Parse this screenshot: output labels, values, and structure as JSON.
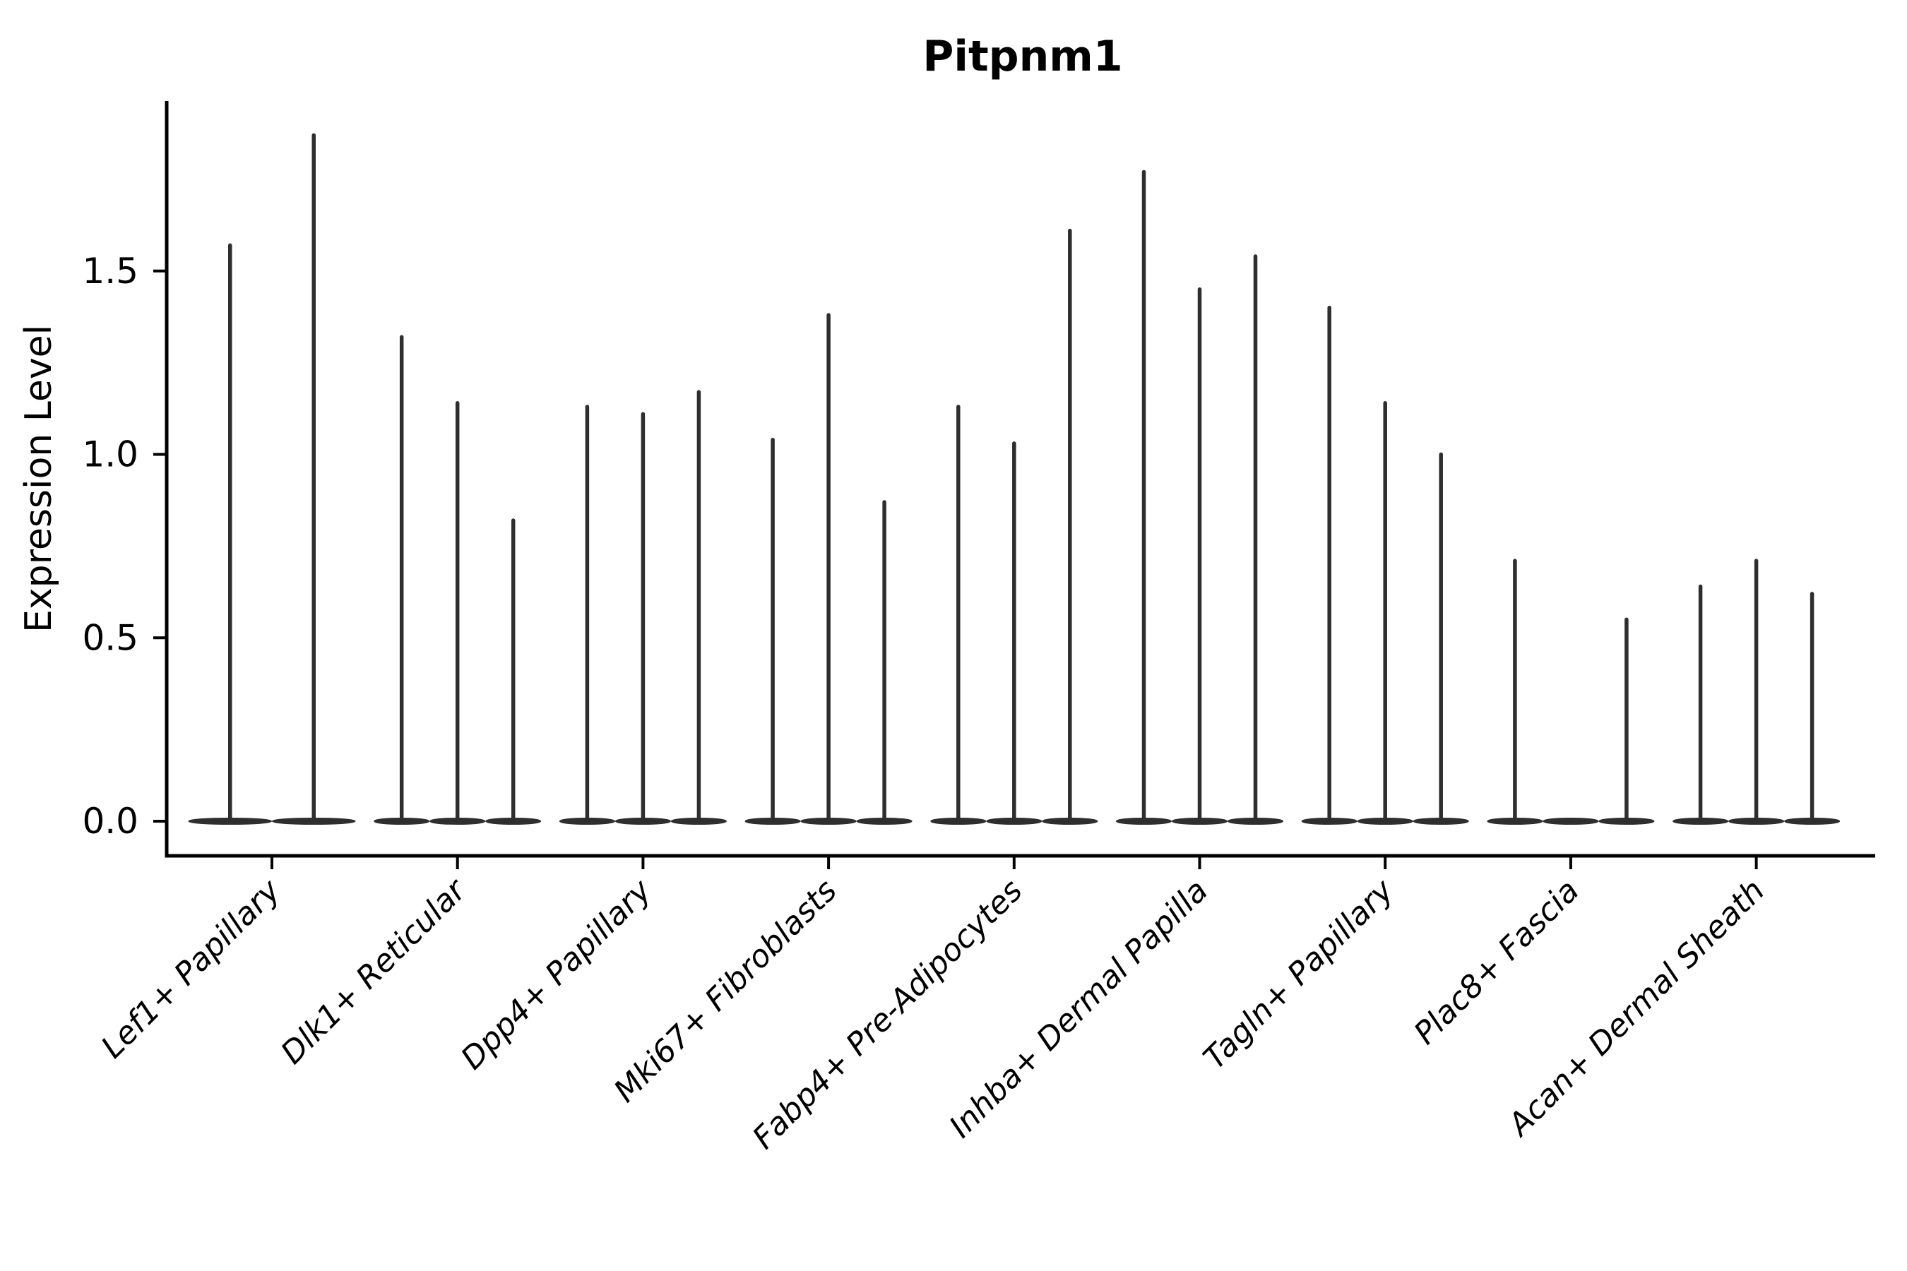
{
  "figure": {
    "title": "Pitpnm1",
    "ylabel": "Expression Level"
  },
  "colors": {
    "violin": "#2e2e2e",
    "axis": "#000000",
    "text": "#000000",
    "background": "#ffffff"
  },
  "chart_data": {
    "type": "violin",
    "title": "Pitpnm1",
    "xlabel": "",
    "ylabel": "Expression Level",
    "ylim": [
      -0.094,
      1.964
    ],
    "yticks": [
      0.0,
      0.5,
      1.0,
      1.5
    ],
    "ytick_labels": [
      "0.0",
      "0.5",
      "1.0",
      "1.5"
    ],
    "grid": false,
    "legend": null,
    "violin_style": "near-zero-width spikes with flat base at 0; value is the max expression reached by each violin",
    "categories": [
      "Lef1+ Papillary",
      "Dlk1+ Reticular",
      "Dpp4+ Papillary",
      "Mki67+ Fibroblasts",
      "Fabp4+ Pre-Adipocytes",
      "Inhba+ Dermal Papilla",
      "Tagln+ Papillary",
      "Plac8+ Fascia",
      "Acan+ Dermal Sheath"
    ],
    "groups": [
      {
        "label": "Lef1+ Papillary",
        "violins": [
          1.57,
          1.87
        ]
      },
      {
        "label": "Dlk1+ Reticular",
        "violins": [
          1.32,
          1.14,
          0.82
        ]
      },
      {
        "label": "Dpp4+ Papillary",
        "violins": [
          1.13,
          1.11,
          1.17
        ]
      },
      {
        "label": "Mki67+ Fibroblasts",
        "violins": [
          1.04,
          1.38,
          0.87
        ]
      },
      {
        "label": "Fabp4+ Pre-Adipocytes",
        "violins": [
          1.13,
          1.03,
          1.61
        ]
      },
      {
        "label": "Inhba+ Dermal Papilla",
        "violins": [
          1.77,
          1.45,
          1.54
        ]
      },
      {
        "label": "Tagln+ Papillary",
        "violins": [
          1.4,
          1.14,
          1.0
        ]
      },
      {
        "label": "Plac8+ Fascia",
        "violins": [
          0.71,
          0.0,
          0.55
        ]
      },
      {
        "label": "Acan+ Dermal Sheath",
        "violins": [
          0.64,
          0.71,
          0.62
        ]
      }
    ]
  }
}
